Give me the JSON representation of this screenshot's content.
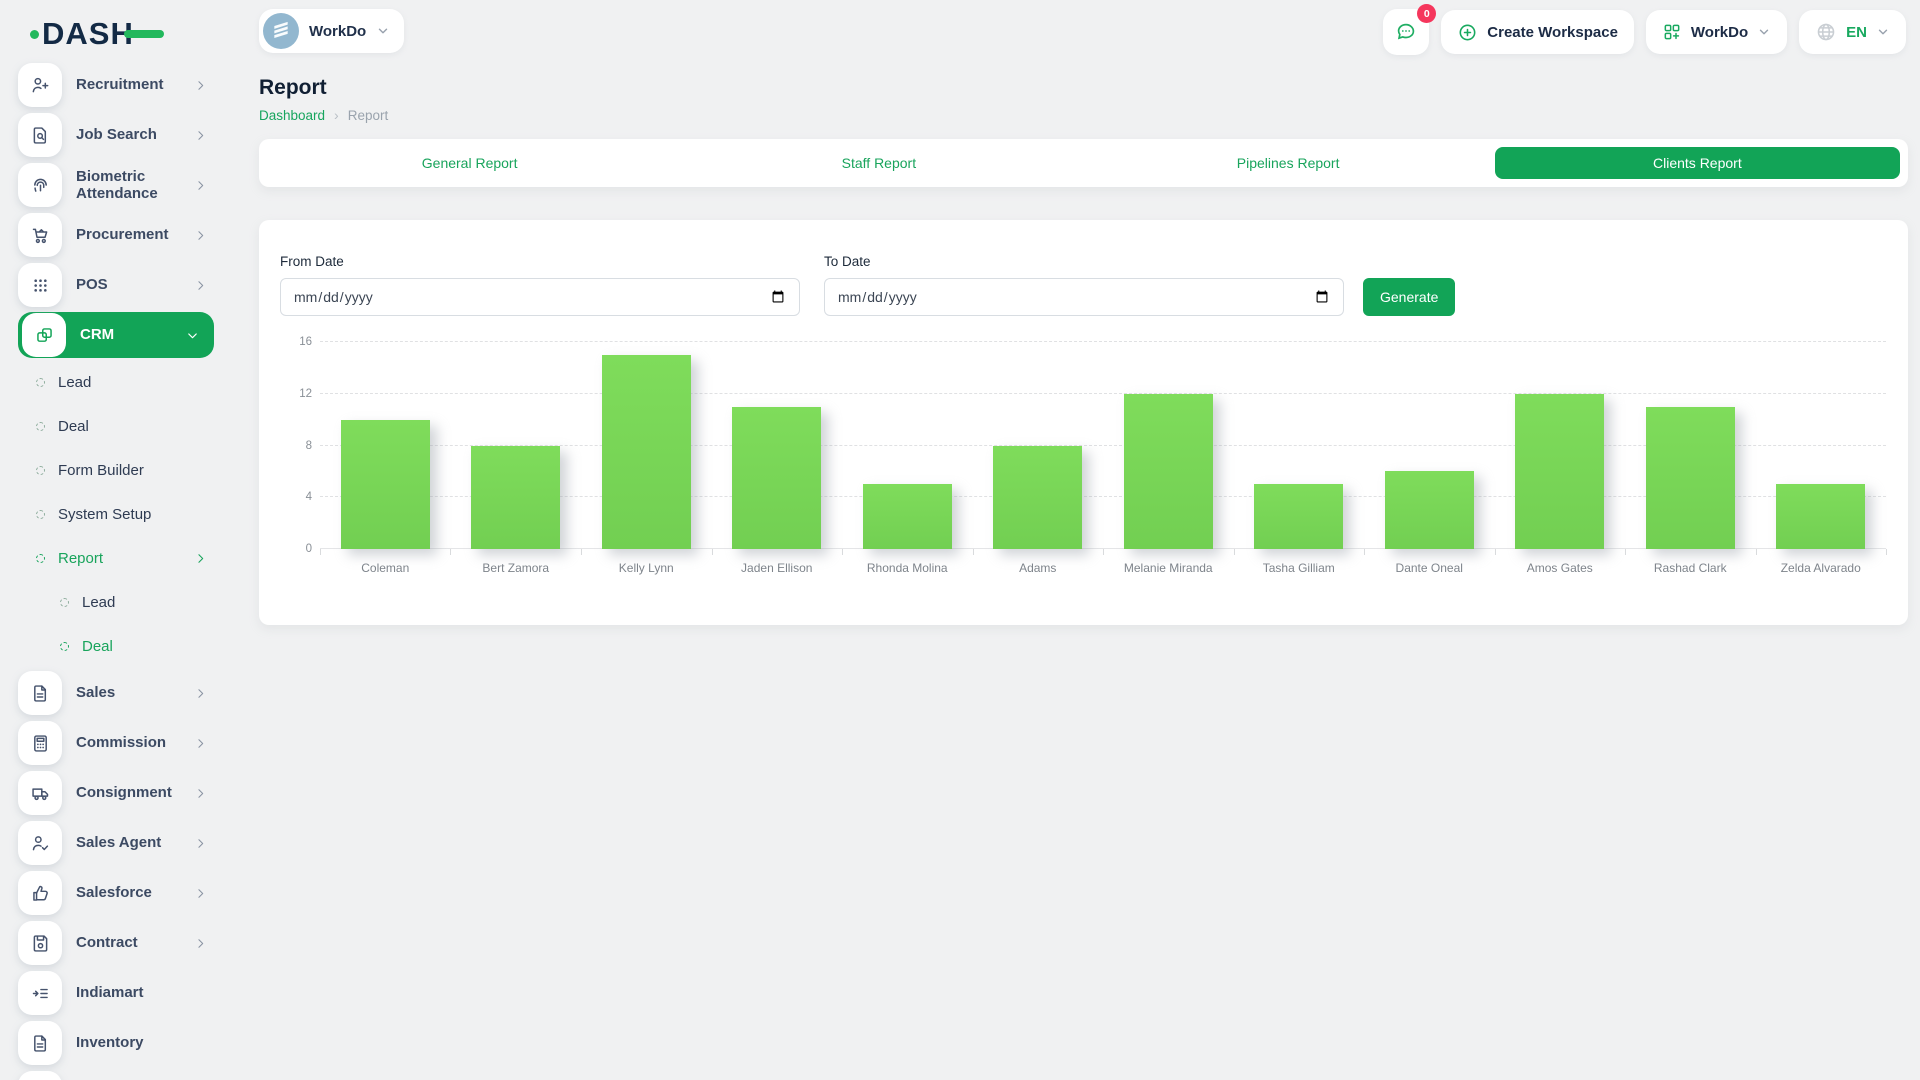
{
  "logo": {
    "text": "DASH"
  },
  "topbar": {
    "workspace_pill": {
      "label": "WorkDo"
    },
    "chat": {
      "badge": "0"
    },
    "create_workspace": {
      "label": "Create Workspace"
    },
    "workspace_menu": {
      "label": "WorkDo"
    },
    "language_menu": {
      "label": "EN"
    }
  },
  "page": {
    "title": "Report",
    "breadcrumb": {
      "home": "Dashboard",
      "separator": "›",
      "current": "Report"
    }
  },
  "tabs": [
    {
      "label": "General Report",
      "active": false
    },
    {
      "label": "Staff Report",
      "active": false
    },
    {
      "label": "Pipelines Report",
      "active": false
    },
    {
      "label": "Clients Report",
      "active": true
    }
  ],
  "filter": {
    "from_label": "From Date",
    "to_label": "To Date",
    "date_placeholder": "mm/dd/yyyy",
    "generate_label": "Generate"
  },
  "sidebar": {
    "items": [
      {
        "label": "Recruitment",
        "icon": "user-plus",
        "level": 0,
        "chevron": "right"
      },
      {
        "label": "Job Search",
        "icon": "doc-search",
        "level": 0,
        "chevron": "right"
      },
      {
        "label": "Biometric Attendance",
        "icon": "fingerprint",
        "level": 0,
        "chevron": "right"
      },
      {
        "label": "Procurement",
        "icon": "cart",
        "level": 0,
        "chevron": "right"
      },
      {
        "label": "POS",
        "icon": "grid-dots",
        "level": 0,
        "chevron": "right"
      },
      {
        "label": "CRM",
        "icon": "copy-squares",
        "level": 0,
        "chevron": "down",
        "active": true
      },
      {
        "label": "Lead",
        "level": 1
      },
      {
        "label": "Deal",
        "level": 1
      },
      {
        "label": "Form Builder",
        "level": 1
      },
      {
        "label": "System Setup",
        "level": 1
      },
      {
        "label": "Report",
        "level": 1,
        "chevron": "right",
        "active": true
      },
      {
        "label": "Lead",
        "level": 2
      },
      {
        "label": "Deal",
        "level": 2,
        "active": true
      },
      {
        "label": "Sales",
        "icon": "file",
        "level": 0,
        "chevron": "right"
      },
      {
        "label": "Commission",
        "icon": "calculator",
        "level": 0,
        "chevron": "right"
      },
      {
        "label": "Consignment",
        "icon": "truck",
        "level": 0,
        "chevron": "right"
      },
      {
        "label": "Sales Agent",
        "icon": "user-check",
        "level": 0,
        "chevron": "right"
      },
      {
        "label": "Salesforce",
        "icon": "thumb-up",
        "level": 0,
        "chevron": "right"
      },
      {
        "label": "Contract",
        "icon": "floppy",
        "level": 0,
        "chevron": "right"
      },
      {
        "label": "Indiamart",
        "icon": "list-arrow",
        "level": 0
      },
      {
        "label": "Inventory",
        "icon": "file",
        "level": 0
      },
      {
        "label": "",
        "icon": "file",
        "level": 0,
        "partial": true
      }
    ]
  },
  "chart_data": {
    "type": "bar",
    "categories": [
      "Coleman",
      "Bert Zamora",
      "Kelly Lynn",
      "Jaden Ellison",
      "Rhonda Molina",
      "Adams",
      "Melanie Miranda",
      "Tasha Gilliam",
      "Dante Oneal",
      "Amos Gates",
      "Rashad Clark",
      "Zelda Alvarado"
    ],
    "values": [
      10,
      8,
      15,
      11,
      5,
      8,
      12,
      5,
      6,
      12,
      11,
      5
    ],
    "title": "",
    "xlabel": "",
    "ylabel": "",
    "ylim": [
      0,
      16
    ],
    "yticks": [
      0,
      4,
      8,
      12,
      16
    ],
    "grid": "horizontal-dashed",
    "legend": "none",
    "bar_color": "#77d75a"
  },
  "colors": {
    "primary_green": "#12a457",
    "bar_green": "#77d75a",
    "badge_red": "#f5365c",
    "dark_navy": "#132a45"
  }
}
